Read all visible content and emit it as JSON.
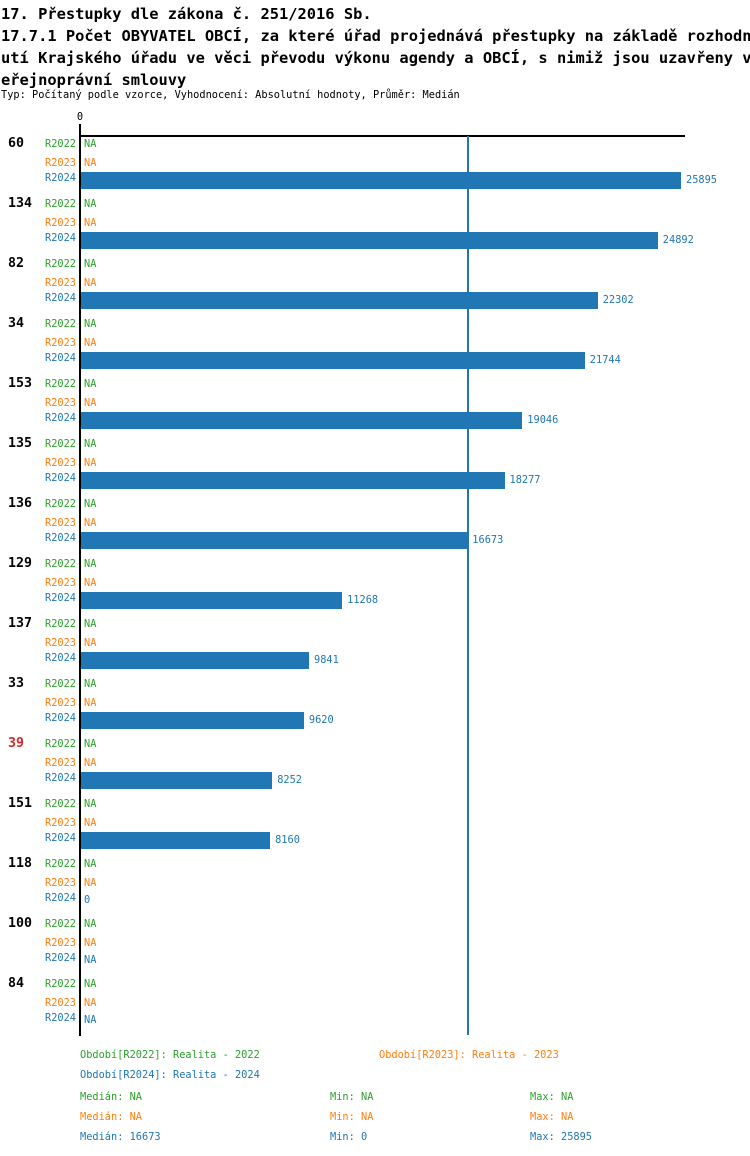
{
  "header": {
    "title_lines": [
      "17. Přestupky dle zákona č. 251/2016 Sb.",
      "17.7.1 Počet OBYVATEL OBCÍ, za které úřad projednává přestupky na základě rozhodn",
      "utí Krajského úřadu ve věci převodu výkonu agendy a OBCÍ, s nimiž jsou uzavřeny v",
      "eřejnoprávní smlouvy"
    ],
    "subtitle": "Typ: Počítaný podle vzorce, Vyhodnocení: Absolutní hodnoty, Průměr: Medián"
  },
  "colors": {
    "r2022": "#2ca02c",
    "r2023": "#ff7f0e",
    "r2024": "#2077b4",
    "bar": "#2077b4",
    "median_line": "#2077b4",
    "axis": "#000000",
    "group_label": "#000000",
    "group_label_alert": "#d62728"
  },
  "chart_data": {
    "type": "bar",
    "orientation": "horizontal",
    "value_axis": {
      "zero_label": "0",
      "min": 0,
      "max": 25895,
      "grid": false
    },
    "median_line_value": 16673,
    "series": [
      "R2022",
      "R2023",
      "R2024"
    ],
    "na_text": "NA",
    "groups": [
      {
        "label": "60",
        "alert": false,
        "R2022": "NA",
        "R2023": "NA",
        "R2024": 25895
      },
      {
        "label": "134",
        "alert": false,
        "R2022": "NA",
        "R2023": "NA",
        "R2024": 24892
      },
      {
        "label": "82",
        "alert": false,
        "R2022": "NA",
        "R2023": "NA",
        "R2024": 22302
      },
      {
        "label": "34",
        "alert": false,
        "R2022": "NA",
        "R2023": "NA",
        "R2024": 21744
      },
      {
        "label": "153",
        "alert": false,
        "R2022": "NA",
        "R2023": "NA",
        "R2024": 19046
      },
      {
        "label": "135",
        "alert": false,
        "R2022": "NA",
        "R2023": "NA",
        "R2024": 18277
      },
      {
        "label": "136",
        "alert": false,
        "R2022": "NA",
        "R2023": "NA",
        "R2024": 16673
      },
      {
        "label": "129",
        "alert": false,
        "R2022": "NA",
        "R2023": "NA",
        "R2024": 11268
      },
      {
        "label": "137",
        "alert": false,
        "R2022": "NA",
        "R2023": "NA",
        "R2024": 9841
      },
      {
        "label": "33",
        "alert": false,
        "R2022": "NA",
        "R2023": "NA",
        "R2024": 9620
      },
      {
        "label": "39",
        "alert": true,
        "R2022": "NA",
        "R2023": "NA",
        "R2024": 8252
      },
      {
        "label": "151",
        "alert": false,
        "R2022": "NA",
        "R2023": "NA",
        "R2024": 8160
      },
      {
        "label": "118",
        "alert": false,
        "R2022": "NA",
        "R2023": "NA",
        "R2024": 0
      },
      {
        "label": "100",
        "alert": false,
        "R2022": "NA",
        "R2023": "NA",
        "R2024": "NA"
      },
      {
        "label": "84",
        "alert": false,
        "R2022": "NA",
        "R2023": "NA",
        "R2024": "NA"
      }
    ]
  },
  "legend": {
    "items": [
      {
        "id": "R2022",
        "text": "Období[R2022]: Realita - 2022",
        "color": "#2ca02c",
        "col": 0,
        "row": 0
      },
      {
        "id": "R2023",
        "text": "Období[R2023]: Realita - 2023",
        "color": "#ff7f0e",
        "col": 1,
        "row": 0
      },
      {
        "id": "R2024",
        "text": "Období[R2024]: Realita - 2024",
        "color": "#2077b4",
        "col": 0,
        "row": 1
      }
    ]
  },
  "stats": {
    "rows": [
      {
        "series": "R2022",
        "color": "#2ca02c",
        "median": "Medián: NA",
        "min": "Min: NA",
        "max": "Max: NA"
      },
      {
        "series": "R2023",
        "color": "#ff7f0e",
        "median": "Medián: NA",
        "min": "Min: NA",
        "max": "Max: NA"
      },
      {
        "series": "R2024",
        "color": "#2077b4",
        "median": "Medián: 16673",
        "min": "Min: 0",
        "max": "Max: 25895"
      }
    ]
  }
}
